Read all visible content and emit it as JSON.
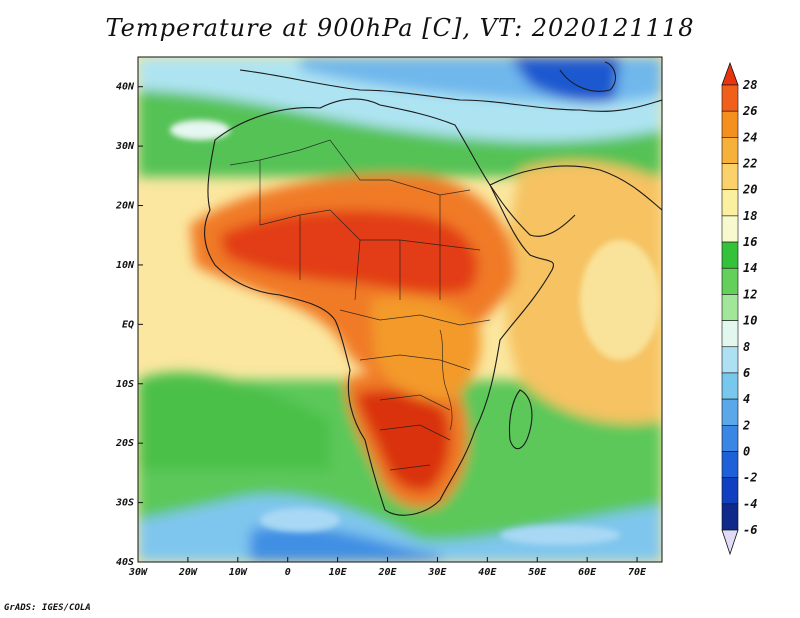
{
  "title": "Temperature at 900hPa [C], VT: 2020121118",
  "credit": "GrADS: IGES/COLA",
  "map": {
    "lon_range": [
      -30,
      75
    ],
    "lat_range": [
      -40,
      45
    ],
    "lon_ticks": [
      {
        "value": -30,
        "label": "30W"
      },
      {
        "value": -20,
        "label": "20W"
      },
      {
        "value": -10,
        "label": "10W"
      },
      {
        "value": 0,
        "label": "0"
      },
      {
        "value": 10,
        "label": "10E"
      },
      {
        "value": 20,
        "label": "20E"
      },
      {
        "value": 30,
        "label": "30E"
      },
      {
        "value": 40,
        "label": "40E"
      },
      {
        "value": 50,
        "label": "50E"
      },
      {
        "value": 60,
        "label": "60E"
      },
      {
        "value": 70,
        "label": "70E"
      }
    ],
    "lat_ticks": [
      {
        "value": 40,
        "label": "40N"
      },
      {
        "value": 30,
        "label": "30N"
      },
      {
        "value": 20,
        "label": "20N"
      },
      {
        "value": 10,
        "label": "10N"
      },
      {
        "value": 0,
        "label": "EQ"
      },
      {
        "value": -10,
        "label": "10S"
      },
      {
        "value": -20,
        "label": "20S"
      },
      {
        "value": -30,
        "label": "30S"
      },
      {
        "value": -40,
        "label": "40S"
      }
    ]
  },
  "colorbar": {
    "levels": [
      "28",
      "26",
      "24",
      "22",
      "20",
      "18",
      "16",
      "14",
      "12",
      "10",
      "8",
      "6",
      "4",
      "2",
      "0",
      "-2",
      "-4",
      "-6"
    ],
    "top_color": "#e8350f",
    "bottom_color": "#e0dcf8",
    "bands": [
      "#e8350f",
      "#f0601a",
      "#f5901e",
      "#f6b13a",
      "#fbd26a",
      "#fbf0a0",
      "#f9f9d0",
      "#34c23a",
      "#62d05a",
      "#a2e69a",
      "#e2f8ee",
      "#aee0f4",
      "#78c8ee",
      "#5aa8ea",
      "#3a86e4",
      "#1e60d8",
      "#1040c0",
      "#102a8c",
      "#0c1860"
    ]
  }
}
